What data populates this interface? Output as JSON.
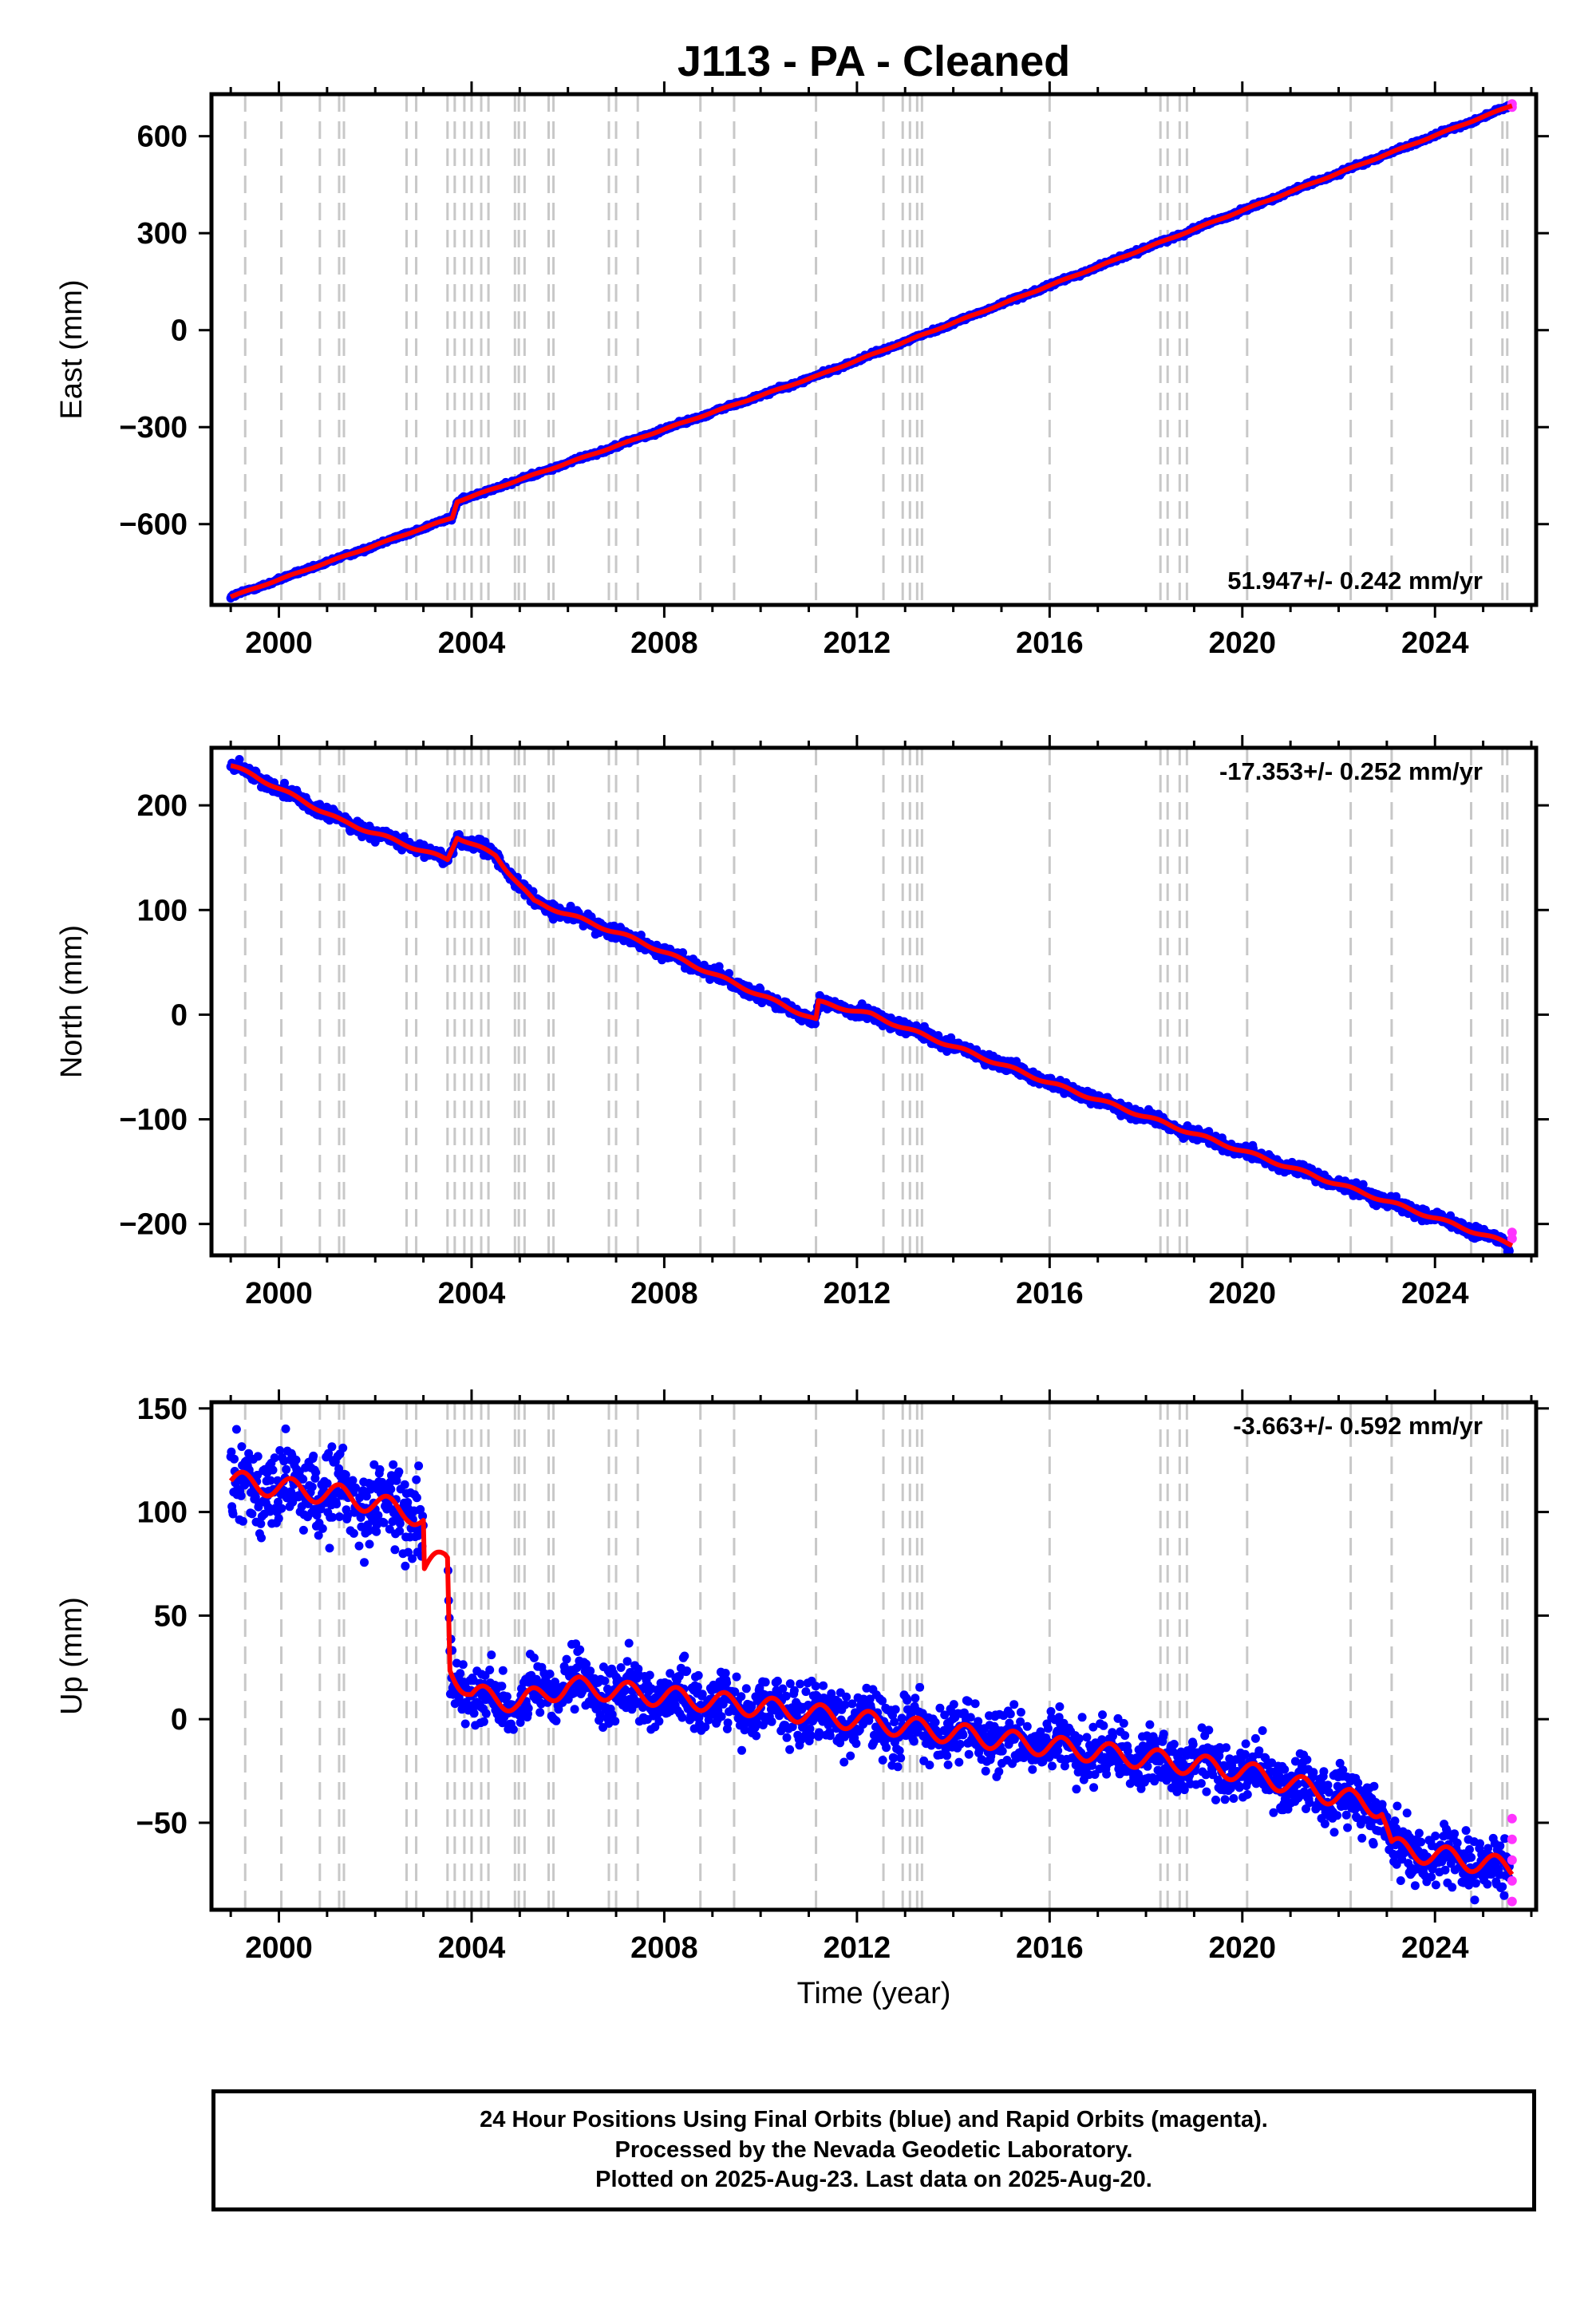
{
  "title": "J113  - PA - Cleaned",
  "colors": {
    "final_orbits": "#0000ff",
    "rapid_orbits": "#ff33ff",
    "model": "#ff0000",
    "event_lines": "#c8c8c8",
    "frame": "#000000"
  },
  "event_lines": [
    1999.3,
    2000.05,
    2000.85,
    2001.25,
    2001.35,
    2002.65,
    2002.85,
    2003.5,
    2003.65,
    2003.85,
    2004.0,
    2004.2,
    2004.35,
    2004.9,
    2004.98,
    2005.1,
    2005.6,
    2005.7,
    2006.85,
    2007.0,
    2007.45,
    2008.75,
    2009.45,
    2011.15,
    2012.55,
    2012.95,
    2013.1,
    2013.25,
    2013.35,
    2016.0,
    2018.3,
    2018.45,
    2018.7,
    2018.85,
    2020.1,
    2022.25,
    2023.1,
    2024.75,
    2025.4,
    2025.5
  ],
  "chart_data": [
    {
      "type": "scatter",
      "id": "east",
      "ylabel": "East (mm)",
      "xlabel": "",
      "xlim": [
        1998.6,
        2026.1
      ],
      "ylim": [
        -850,
        730
      ],
      "xticks": [
        2000,
        2004,
        2008,
        2012,
        2016,
        2020,
        2024
      ],
      "xticklabels": [
        "2000",
        "2004",
        "2008",
        "2012",
        "2016",
        "2020",
        "2024"
      ],
      "yticks": [
        -600,
        -300,
        0,
        300,
        600
      ],
      "yticklabels": [
        "−600",
        "−300",
        "0",
        "300",
        "600"
      ],
      "rate_label": "51.947+/- 0.242 mm/yr",
      "rate_position": "bottom-right",
      "grid": false,
      "model": {
        "x": [
          1999.0,
          2003.6,
          2003.7,
          2011.2,
          2025.6
        ],
        "y": [
          -825,
          -580,
          -530,
          -140,
          695
        ]
      },
      "steps": [],
      "noise_mm": 3,
      "rapid_y": [
        690,
        700
      ]
    },
    {
      "type": "scatter",
      "id": "north",
      "ylabel": "North (mm)",
      "xlabel": "",
      "xlim": [
        1998.6,
        2026.1
      ],
      "ylim": [
        -230,
        255
      ],
      "xticks": [
        2000,
        2004,
        2008,
        2012,
        2016,
        2020,
        2024
      ],
      "xticklabels": [
        "2000",
        "2004",
        "2008",
        "2012",
        "2016",
        "2020",
        "2024"
      ],
      "yticks": [
        -200,
        -100,
        0,
        100,
        200
      ],
      "yticklabels": [
        "−200",
        "−100",
        "0",
        "100",
        "200"
      ],
      "rate_label": "-17.353+/- 0.252 mm/yr",
      "rate_position": "top-right",
      "grid": false,
      "model": {
        "x": [
          1999.0,
          1999.5,
          2001.3,
          2003.5,
          2003.7,
          2004.5,
          2004.7,
          2005.3,
          2007.5,
          2011.15,
          2011.2,
          2012.3,
          2013.0,
          2016.0,
          2020.0,
          2025.6
        ],
        "y": [
          238,
          228,
          185,
          148,
          170,
          152,
          140,
          108,
          70,
          -5,
          12,
          0,
          -13,
          -65,
          -130,
          -220
        ]
      },
      "noise_mm": 3,
      "rapid_y": [
        -208,
        -214
      ]
    },
    {
      "type": "scatter",
      "id": "up",
      "ylabel": "Up (mm)",
      "xlabel": "Time (year)",
      "xlim": [
        1998.6,
        2026.1
      ],
      "ylim": [
        -92,
        153
      ],
      "xticks": [
        2000,
        2004,
        2008,
        2012,
        2016,
        2020,
        2024
      ],
      "xticklabels": [
        "2000",
        "2004",
        "2008",
        "2012",
        "2016",
        "2020",
        "2024"
      ],
      "yticks": [
        -50,
        0,
        50,
        100,
        150
      ],
      "yticklabels": [
        "−50",
        "0",
        "50",
        "100",
        "150"
      ],
      "rate_label": "-3.663+/- 0.592 mm/yr",
      "rate_position": "top-right",
      "grid": false,
      "model": {
        "x": [
          1999.0,
          2001.3,
          2002.7,
          2003.0,
          2003.02,
          2003.45,
          2003.5,
          2003.55,
          2004.0,
          2005.0,
          2006.0,
          2010.0,
          2015.0,
          2020.0,
          2022.9,
          2023.0,
          2023.1,
          2025.6
        ],
        "y": [
          115,
          108,
          100,
          96,
          72,
          78,
          78,
          25,
          12,
          8,
          16,
          6,
          -10,
          -25,
          -43,
          -52,
          -62,
          -72
        ]
      },
      "gap": [
        2003.0,
        2003.5
      ],
      "noise_mm": 7,
      "rapid_y": [
        -48,
        -58,
        -68,
        -78,
        -88
      ]
    }
  ],
  "footer": {
    "line1": "24 Hour Positions Using Final Orbits (blue) and Rapid Orbits (magenta).",
    "line2": "Processed by the Nevada Geodetic Laboratory.",
    "line3": "Plotted on 2025-Aug-23. Last data on 2025-Aug-20."
  }
}
